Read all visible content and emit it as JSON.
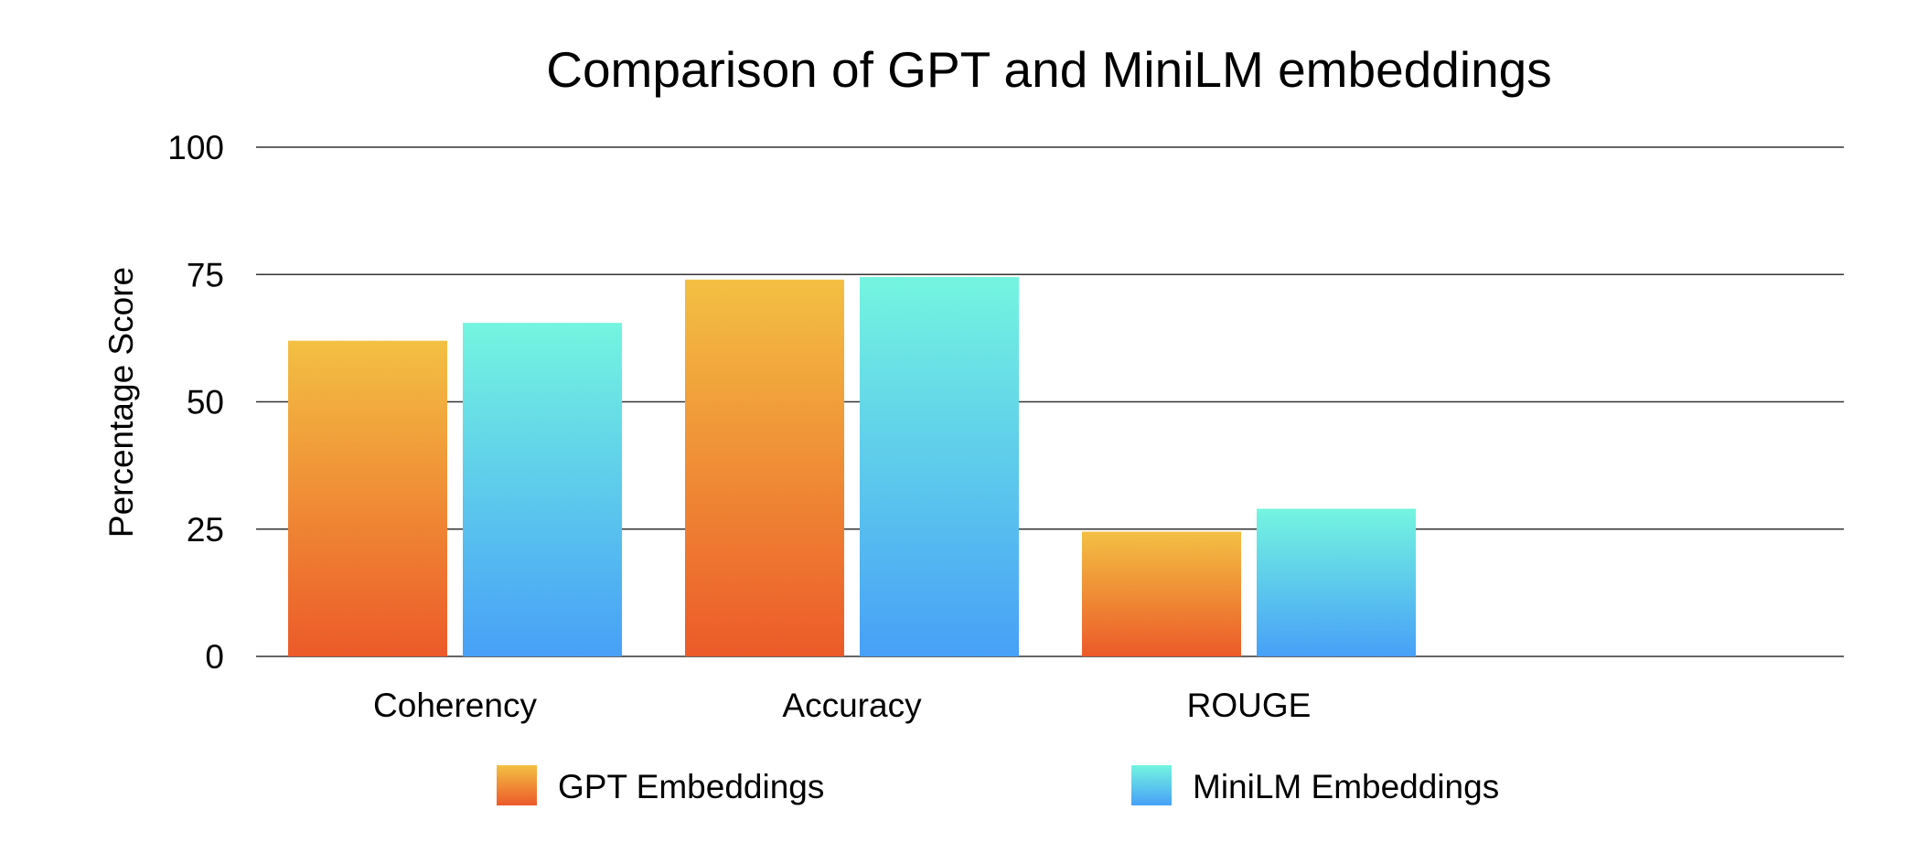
{
  "chart_data": {
    "type": "bar",
    "title": "Comparison of GPT and MiniLM embeddings",
    "xlabel": "",
    "ylabel": "Percentage Score",
    "categories": [
      "Coherency",
      "Accuracy",
      "ROUGE"
    ],
    "series": [
      {
        "name": "GPT Embeddings",
        "values": [
          62,
          74,
          24.5
        ],
        "color_top": "#F3C043",
        "color_bottom": "#EC5A29"
      },
      {
        "name": "MiniLM Embeddings",
        "values": [
          65.5,
          74.5,
          29
        ],
        "color_top": "#74F5E0",
        "color_bottom": "#47A0F7"
      }
    ],
    "ylim": [
      0,
      100
    ],
    "yticks": [
      0,
      25,
      50,
      75,
      100
    ],
    "grid": true,
    "legend_position": "bottom"
  }
}
